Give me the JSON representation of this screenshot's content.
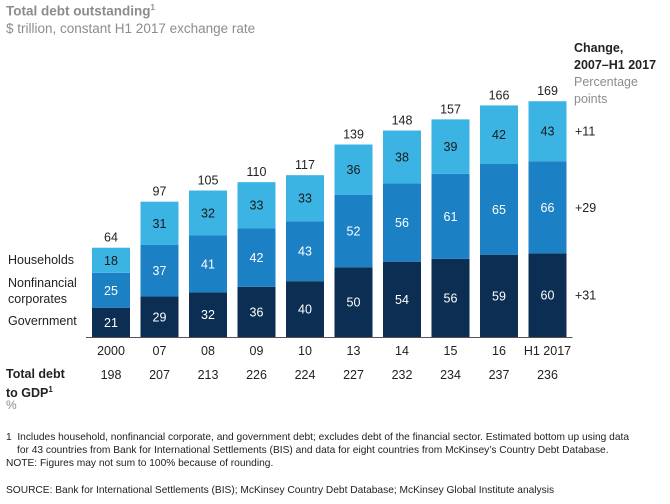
{
  "header": {
    "title": "Total debt outstanding",
    "title_sup": "1",
    "subtitle": "$ trillion, constant H1 2017 exchange rate"
  },
  "change": {
    "title_line1": "Change,",
    "title_line2": "2007–H1 2017",
    "unit_line1": "Percentage",
    "unit_line2": "points"
  },
  "legend": {
    "households": "Households",
    "nonfinancial_line1": "Nonfinancial",
    "nonfinancial_line2": "corporates",
    "government": "Government"
  },
  "gdp": {
    "label_line1": "Total debt",
    "label_line2": "to GDP",
    "label_sup": "1",
    "unit": "%"
  },
  "footnotes": {
    "note1_marker": "1",
    "note1_line1": "Includes household, nonfinancial corporate, and government debt; excludes debt of the financial sector. Estimated bottom up using data",
    "note1_line2": "for 43 countries from Bank for International Settlements (BIS) and data for eight countries from McKinsey’s Country Debt Database.",
    "note2": "NOTE: Figures may not sum to 100% because of rounding.",
    "source": "SOURCE:  Bank for International Settlements (BIS); McKinsey Country Debt Database; McKinsey Global Institute analysis"
  },
  "colors": {
    "households": "#3bb3e3",
    "nonfinancial": "#1b80c4",
    "government": "#0c2e52"
  },
  "chart_data": {
    "type": "bar",
    "stacked": true,
    "categories": [
      "2000",
      "07",
      "08",
      "09",
      "10",
      "13",
      "14",
      "15",
      "16",
      "H1 2017"
    ],
    "series": [
      {
        "name": "Government",
        "values": [
          21,
          29,
          32,
          36,
          40,
          50,
          54,
          56,
          59,
          60
        ],
        "change": "+31"
      },
      {
        "name": "Nonfinancial corporates",
        "values": [
          25,
          37,
          41,
          42,
          43,
          52,
          56,
          61,
          65,
          66
        ],
        "change": "+29"
      },
      {
        "name": "Households",
        "values": [
          18,
          31,
          32,
          33,
          33,
          36,
          38,
          39,
          42,
          43
        ],
        "change": "+11"
      }
    ],
    "totals": [
      64,
      97,
      105,
      110,
      117,
      139,
      148,
      157,
      166,
      169
    ],
    "debt_to_gdp": [
      198,
      207,
      213,
      226,
      224,
      227,
      232,
      234,
      237,
      236
    ],
    "ylim": [
      0,
      169
    ]
  }
}
